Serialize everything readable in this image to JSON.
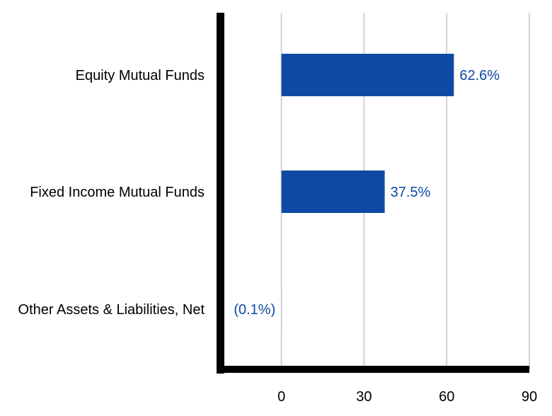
{
  "chart_data": {
    "type": "bar",
    "orientation": "horizontal",
    "categories": [
      "Equity Mutual Funds",
      "Fixed Income Mutual Funds",
      "Other Assets & Liabilities, Net"
    ],
    "values": [
      62.6,
      37.5,
      -0.1
    ],
    "data_labels": [
      "62.6%",
      "37.5%",
      "(0.1%)"
    ],
    "xticks": [
      0,
      30,
      60,
      90
    ],
    "xlim": [
      -22,
      90
    ],
    "grid": true,
    "legend": "none",
    "title": "",
    "xlabel": "",
    "ylabel": ""
  },
  "colors": {
    "bar": "#0e4aa3",
    "negative_bar": "#c9d3df",
    "data_label": "#0e4aa3",
    "grid": "#d3d3d3",
    "axis": "#000000"
  }
}
